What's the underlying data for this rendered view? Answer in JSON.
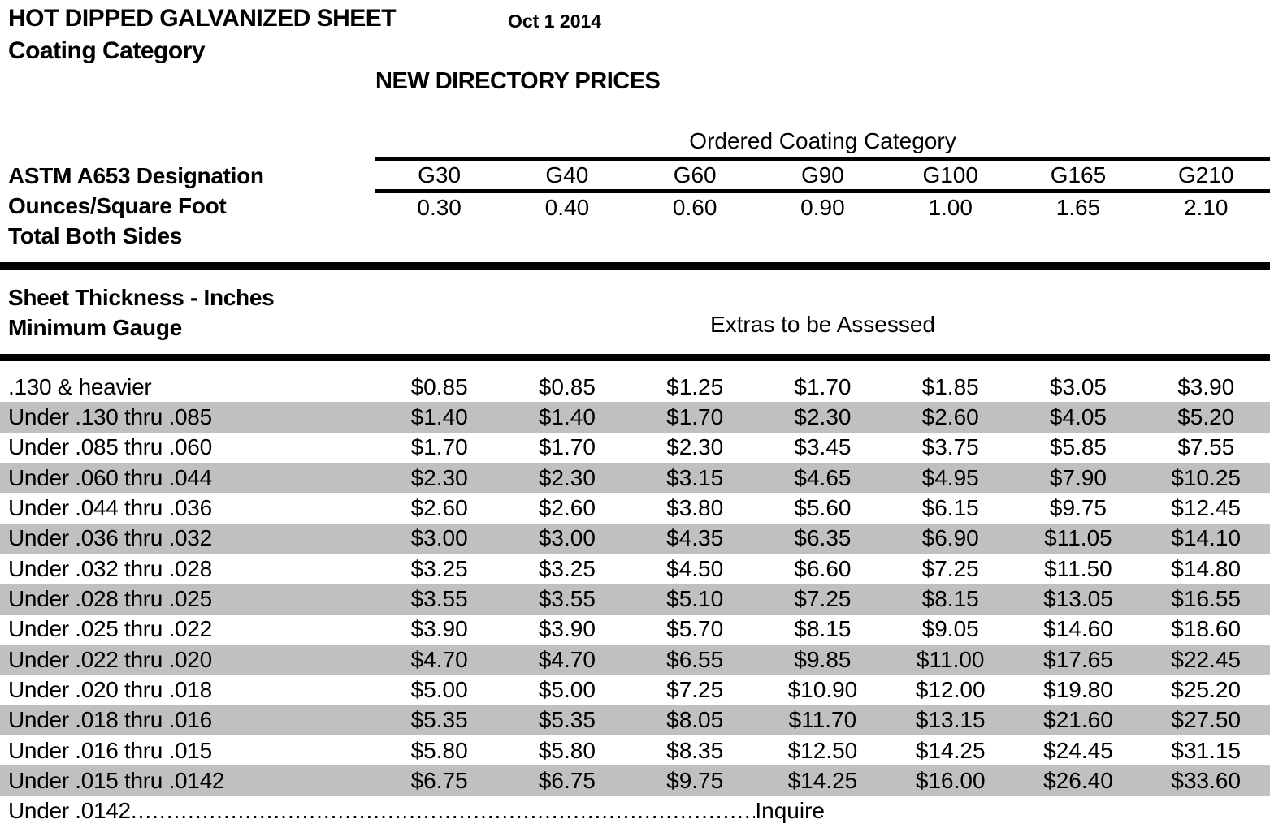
{
  "header": {
    "title": "HOT DIPPED GALVANIZED SHEET",
    "date": "Oct 1 2014",
    "subtitle": "Coating Category",
    "heading": "NEW DIRECTORY PRICES"
  },
  "coating_table": {
    "group_header": "Ordered Coating Category",
    "left_header_lines": [
      "ASTM A653 Designation",
      "Ounces/Square Foot",
      "Total Both Sides"
    ],
    "categories": [
      "G30",
      "G40",
      "G60",
      "G90",
      "G100",
      "G165",
      "G210"
    ],
    "ounces": [
      "0.30",
      "0.40",
      "0.60",
      "0.90",
      "1.00",
      "1.65",
      "2.10"
    ]
  },
  "extras_table": {
    "left_header_lines": [
      "Sheet Thickness - Inches",
      "Minimum Gauge"
    ],
    "section_header": "Extras to be Assessed",
    "rows": [
      {
        "label": ".130 & heavier",
        "values": [
          "$0.85",
          "$0.85",
          "$1.25",
          "$1.70",
          "$1.85",
          "$3.05",
          "$3.90"
        ]
      },
      {
        "label": "Under .130 thru .085",
        "values": [
          "$1.40",
          "$1.40",
          "$1.70",
          "$2.30",
          "$2.60",
          "$4.05",
          "$5.20"
        ]
      },
      {
        "label": "Under .085 thru .060",
        "values": [
          "$1.70",
          "$1.70",
          "$2.30",
          "$3.45",
          "$3.75",
          "$5.85",
          "$7.55"
        ]
      },
      {
        "label": "Under .060 thru .044",
        "values": [
          "$2.30",
          "$2.30",
          "$3.15",
          "$4.65",
          "$4.95",
          "$7.90",
          "$10.25"
        ]
      },
      {
        "label": "Under .044 thru .036",
        "values": [
          "$2.60",
          "$2.60",
          "$3.80",
          "$5.60",
          "$6.15",
          "$9.75",
          "$12.45"
        ]
      },
      {
        "label": "Under .036 thru .032",
        "values": [
          "$3.00",
          "$3.00",
          "$4.35",
          "$6.35",
          "$6.90",
          "$11.05",
          "$14.10"
        ]
      },
      {
        "label": "Under .032 thru .028",
        "values": [
          "$3.25",
          "$3.25",
          "$4.50",
          "$6.60",
          "$7.25",
          "$11.50",
          "$14.80"
        ]
      },
      {
        "label": "Under .028 thru .025",
        "values": [
          "$3.55",
          "$3.55",
          "$5.10",
          "$7.25",
          "$8.15",
          "$13.05",
          "$16.55"
        ]
      },
      {
        "label": "Under .025 thru .022",
        "values": [
          "$3.90",
          "$3.90",
          "$5.70",
          "$8.15",
          "$9.05",
          "$14.60",
          "$18.60"
        ]
      },
      {
        "label": "Under .022 thru .020",
        "values": [
          "$4.70",
          "$4.70",
          "$6.55",
          "$9.85",
          "$11.00",
          "$17.65",
          "$22.45"
        ]
      },
      {
        "label": "Under .020 thru .018",
        "values": [
          "$5.00",
          "$5.00",
          "$7.25",
          "$10.90",
          "$12.00",
          "$19.80",
          "$25.20"
        ]
      },
      {
        "label": "Under .018 thru .016",
        "values": [
          "$5.35",
          "$5.35",
          "$8.05",
          "$11.70",
          "$13.15",
          "$21.60",
          "$27.50"
        ]
      },
      {
        "label": "Under .016 thru .015",
        "values": [
          "$5.80",
          "$5.80",
          "$8.35",
          "$12.50",
          "$14.25",
          "$24.45",
          "$31.15"
        ]
      },
      {
        "label": "Under .015 thru .0142",
        "values": [
          "$6.75",
          "$6.75",
          "$9.75",
          "$14.25",
          "$16.00",
          "$26.40",
          "$33.60"
        ]
      }
    ],
    "footer": {
      "label": "Under .0142",
      "leader": "........................................................................................................................................",
      "value": "Inquire"
    }
  },
  "colors": {
    "text": "#000000",
    "stripe": "#c0c0c0",
    "background": "#ffffff"
  }
}
